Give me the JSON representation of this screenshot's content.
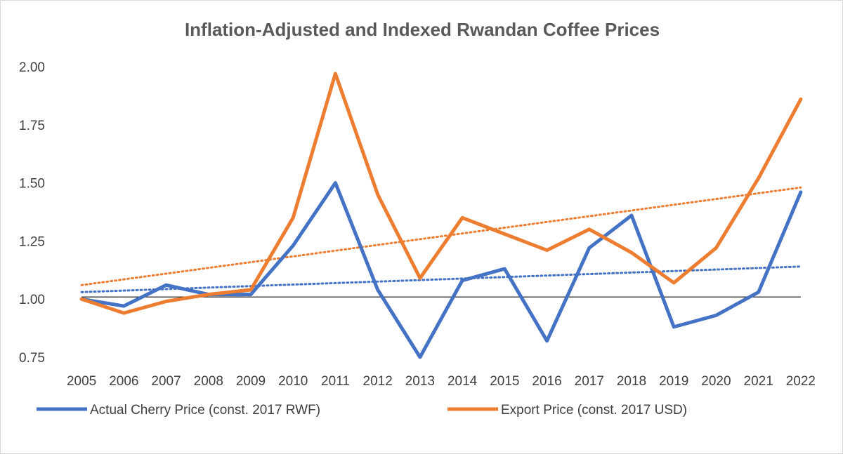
{
  "chart_data": {
    "type": "line",
    "title": "Inflation-Adjusted and Indexed Rwandan Coffee Prices",
    "xlabel": "",
    "ylabel": "",
    "x": [
      "2005",
      "2006",
      "2007",
      "2008",
      "2009",
      "2010",
      "2011",
      "2012",
      "2013",
      "2014",
      "2015",
      "2016",
      "2017",
      "2018",
      "2019",
      "2020",
      "2021",
      "2022"
    ],
    "ylim": [
      0.75,
      2.0
    ],
    "yticks": [
      "0.75",
      "1.00",
      "1.25",
      "1.50",
      "1.75",
      "2.00"
    ],
    "baseline": 1.0,
    "grid": false,
    "legend_position": "bottom",
    "series": [
      {
        "name": "Actual Cherry Price (const. 2017 RWF)",
        "color": "#4472C4",
        "values": [
          1.0,
          0.97,
          1.06,
          1.02,
          1.02,
          1.23,
          1.5,
          1.04,
          0.75,
          1.08,
          1.13,
          0.82,
          1.22,
          1.36,
          0.88,
          0.93,
          1.03,
          1.46
        ],
        "trendline": [
          1.03,
          1.14
        ]
      },
      {
        "name": "Export Price (const. 2017 USD)",
        "color": "#ED7D31",
        "values": [
          1.0,
          0.94,
          0.99,
          1.02,
          1.04,
          1.35,
          1.97,
          1.45,
          1.09,
          1.35,
          1.28,
          1.21,
          1.3,
          1.2,
          1.07,
          1.22,
          1.52,
          1.86
        ],
        "trendline": [
          1.06,
          1.48
        ]
      }
    ]
  }
}
